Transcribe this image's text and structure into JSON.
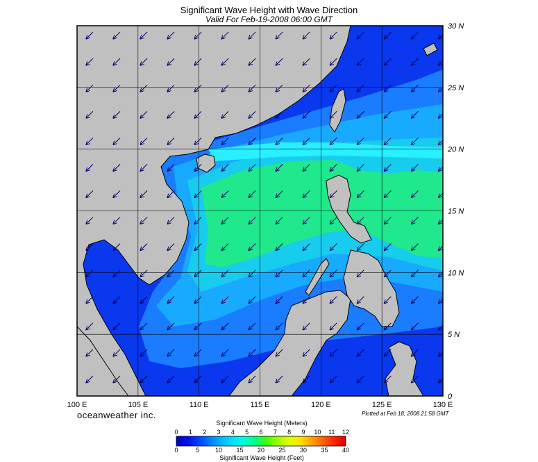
{
  "title": "Significant Wave Height with Wave Direction",
  "subtitle": "Valid For Feb-19-2008 06:00 GMT",
  "brand": "oceanweather inc.",
  "plotted_note": "Plotted at Feb 18, 2008 21:58 GMT",
  "map": {
    "lon_range": [
      100,
      130
    ],
    "lat_range": [
      0,
      30
    ],
    "lon_ticks": [
      {
        "value": 100,
        "label": "100 E"
      },
      {
        "value": 105,
        "label": "105 E"
      },
      {
        "value": 110,
        "label": "110 E"
      },
      {
        "value": 115,
        "label": "115 E"
      },
      {
        "value": 120,
        "label": "120 E"
      },
      {
        "value": 125,
        "label": "125 E"
      },
      {
        "value": 130,
        "label": "130 E"
      }
    ],
    "lat_ticks": [
      {
        "value": 30,
        "label": "30 N"
      },
      {
        "value": 25,
        "label": "25 N"
      },
      {
        "value": 20,
        "label": "20 N"
      },
      {
        "value": 15,
        "label": "15 N"
      },
      {
        "value": 10,
        "label": "10 N"
      },
      {
        "value": 5,
        "label": "5 N"
      },
      {
        "value": 0,
        "label": "0"
      }
    ],
    "arrow_direction_deg_from": 45,
    "land_color": "#c0c0c0",
    "grid_color": "#000000"
  },
  "colorbar": {
    "title_top": "Significant Wave Height (Meters)",
    "title_bottom": "Significant Wave Height (Feet)",
    "meter_labels": [
      "0",
      "1",
      "2",
      "3",
      "4",
      "5",
      "6",
      "7",
      "8",
      "9",
      "10",
      "11",
      "12"
    ],
    "feet_labels": [
      "0",
      "5",
      "10",
      "15",
      "20",
      "25",
      "30",
      "35",
      "40"
    ],
    "colors": [
      "#0000c8",
      "#0010e6",
      "#0040ff",
      "#0080ff",
      "#00b8ff",
      "#00e0ff",
      "#00ffd8",
      "#00ff80",
      "#40ff00",
      "#a0ff00",
      "#e0ff00",
      "#ffe000",
      "#ffa000",
      "#ff6000",
      "#ff2000",
      "#e00000"
    ]
  }
}
